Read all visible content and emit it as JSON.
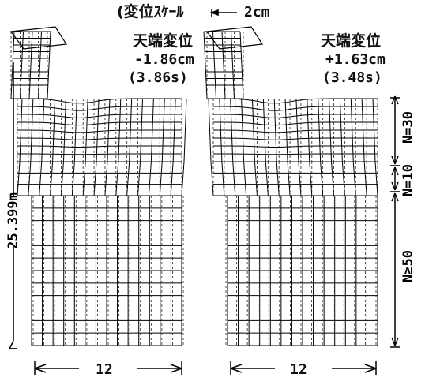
{
  "title": "(変位ｽｹｰﾙ",
  "scale_value": "2cm",
  "left_panel": {
    "label": "天端変位",
    "displacement": "-1.86cm",
    "time": "(3.86s)"
  },
  "right_panel": {
    "label": "天端変位",
    "displacement": "+1.63cm",
    "time": "(3.48s)"
  },
  "height_label": "25.399m",
  "width_label": "12",
  "layers": [
    {
      "label": "N=30"
    },
    {
      "label": "N=10"
    },
    {
      "label": "N≥50"
    }
  ],
  "colors": {
    "line": "#000000",
    "dashed": "#222222",
    "background": "#ffffff"
  }
}
